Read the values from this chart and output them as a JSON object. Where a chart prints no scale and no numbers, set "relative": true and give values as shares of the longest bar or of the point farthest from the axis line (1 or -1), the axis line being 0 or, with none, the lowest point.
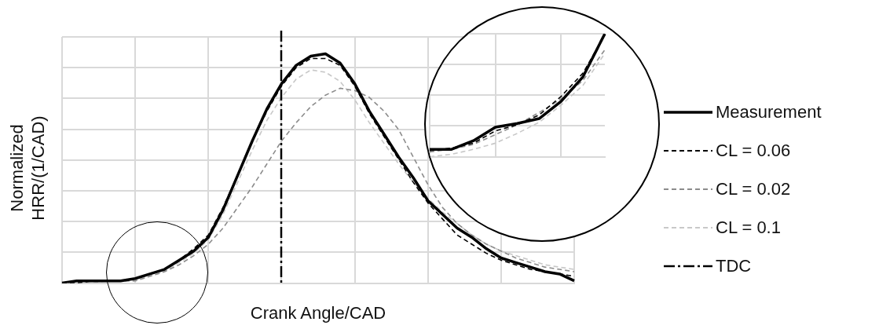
{
  "chart_data": [
    {
      "type": "line",
      "xlabel": "Crank Angle/CAD",
      "ylabel": "Normalized HRR/(1/CAD)",
      "relative": true,
      "grid": true,
      "legend": "right",
      "marker": "none",
      "categories": [
        null,
        null,
        null,
        null,
        null,
        null,
        null,
        null,
        null,
        null,
        null,
        null,
        null,
        null,
        null,
        null,
        null,
        null,
        null,
        null,
        null,
        null,
        null,
        null,
        null,
        null,
        null,
        null,
        null,
        null,
        null,
        null,
        null,
        null,
        null,
        null
      ],
      "series": [
        {
          "name": "Measurement",
          "color": "#000000",
          "line_style": "solid",
          "values": [
            0,
            0.01,
            0.01,
            0.01,
            0.01,
            0.02,
            0.04,
            0.06,
            0.1,
            0.14,
            0.2,
            0.32,
            0.47,
            0.62,
            0.76,
            0.87,
            0.95,
            0.99,
            1,
            0.96,
            0.87,
            0.75,
            0.65,
            0.55,
            0.46,
            0.36,
            0.3,
            0.24,
            0.2,
            0.15,
            0.11,
            0.09,
            0.07,
            0.05,
            0.04,
            0.01
          ]
        },
        {
          "name": "CL = 0.06",
          "color": "#000000",
          "line_style": "dashed",
          "values": [
            0,
            0,
            0.01,
            0.01,
            0.01,
            0.02,
            0.04,
            0.06,
            0.1,
            0.15,
            0.21,
            0.33,
            0.47,
            0.62,
            0.75,
            0.86,
            0.94,
            0.98,
            0.98,
            0.95,
            0.86,
            0.74,
            0.64,
            0.54,
            0.44,
            0.35,
            0.28,
            0.21,
            0.17,
            0.13,
            0.1,
            0.08,
            0.06,
            0.05,
            0.04,
            0.03
          ]
        },
        {
          "name": "CL = 0.02",
          "color": "#8c8c8c",
          "line_style": "dashed",
          "values": [
            0,
            0,
            0.01,
            0.01,
            0.01,
            0.01,
            0.03,
            0.05,
            0.08,
            0.12,
            0.17,
            0.24,
            0.33,
            0.42,
            0.52,
            0.62,
            0.7,
            0.77,
            0.82,
            0.85,
            0.84,
            0.81,
            0.75,
            0.67,
            0.55,
            0.43,
            0.33,
            0.26,
            0.21,
            0.17,
            0.14,
            0.11,
            0.09,
            0.07,
            0.06,
            0.05
          ]
        },
        {
          "name": "CL = 0.1",
          "color": "#c8c8c8",
          "line_style": "dashed",
          "values": [
            0,
            0,
            0,
            0.01,
            0.01,
            0.01,
            0.03,
            0.05,
            0.09,
            0.13,
            0.19,
            0.3,
            0.44,
            0.58,
            0.71,
            0.81,
            0.89,
            0.93,
            0.92,
            0.88,
            0.8,
            0.7,
            0.61,
            0.52,
            0.44,
            0.37,
            0.31,
            0.26,
            0.21,
            0.17,
            0.14,
            0.12,
            0.1,
            0.08,
            0.07,
            0.06
          ]
        }
      ],
      "ref_lines": [
        {
          "axis": "x",
          "label": "TDC",
          "color": "#000000",
          "line_style": "dashdot"
        }
      ]
    },
    {
      "type": "line",
      "relative": true,
      "grid": true,
      "marker": "none",
      "categories": [
        null,
        null,
        null,
        null,
        null,
        null,
        null,
        null,
        null
      ],
      "series": [
        {
          "color": "#000000",
          "line_style": "solid",
          "values": [
            0.06,
            0.06,
            0.13,
            0.24,
            0.27,
            0.31,
            0.45,
            0.65,
            1
          ]
        },
        {
          "color": "#000000",
          "line_style": "dashed",
          "values": [
            0.05,
            0.07,
            0.11,
            0.21,
            0.26,
            0.34,
            0.49,
            0.68,
            0.99
          ]
        },
        {
          "color": "#8c8c8c",
          "line_style": "dashed",
          "values": [
            0.04,
            0.06,
            0.1,
            0.18,
            0.26,
            0.36,
            0.47,
            0.62,
            0.87
          ]
        },
        {
          "color": "#c8c8c8",
          "line_style": "dashed",
          "values": [
            0,
            0.02,
            0.06,
            0.11,
            0.19,
            0.28,
            0.42,
            0.58,
            0.84
          ]
        }
      ]
    }
  ]
}
